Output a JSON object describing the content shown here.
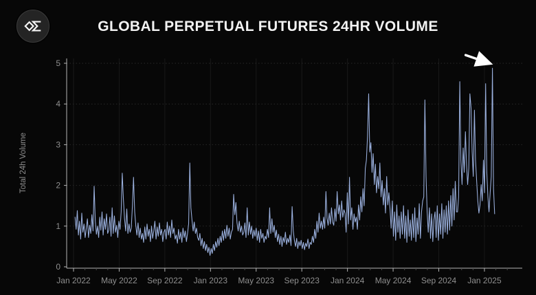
{
  "header": {
    "title": "GLOBAL PERPETUAL FUTURES 24HR VOLUME"
  },
  "colors": {
    "background": "#070707",
    "title": "#f2f2f2",
    "axis_line": "#b5b5b5",
    "tick_label": "#8f8f8f",
    "grid_horizontal": "#282828",
    "grid_vertical": "#191919",
    "line": "#9cb2e0",
    "annotation_arrow": "#ffffff"
  },
  "chart_data": {
    "type": "line",
    "title": "GLOBAL PERPETUAL FUTURES 24HR VOLUME",
    "xlabel": "",
    "ylabel": "Total 24h Volume",
    "ylim": [
      0,
      5
    ],
    "yticks": [
      0,
      1,
      2,
      3,
      4,
      5
    ],
    "xtick_labels": [
      "Jan 2022",
      "May 2022",
      "Sep 2022",
      "Jan 2023",
      "May 2023",
      "Sep 2023",
      "Jan 2024",
      "May 2024",
      "Sep 2024",
      "Jan 2025"
    ],
    "xtick_month_step": 4,
    "x_start": "2022-01-05",
    "x_step_days": 3,
    "x_end": "2025-02-17",
    "grid": true,
    "legend": false,
    "annotation": {
      "type": "arrow",
      "color": "#ffffff",
      "points_to": "final volume spike (~4.9) in early Feb 2025"
    },
    "series": [
      {
        "name": "Total 24h Volume",
        "color": "#9cb2e0",
        "values": [
          1.22,
          0.92,
          1.38,
          0.78,
          1.12,
          0.68,
          1.32,
          0.85,
          1.05,
          0.72,
          0.95,
          1.18,
          0.72,
          1.02,
          0.82,
          1.28,
          0.88,
          1.98,
          1.12,
          0.8,
          1.0,
          0.72,
          1.22,
          0.9,
          1.35,
          0.78,
          1.18,
          0.92,
          1.3,
          0.82,
          0.9,
          1.22,
          0.75,
          1.45,
          0.82,
          1.25,
          0.85,
          1.02,
          0.72,
          1.12,
          0.92,
          1.35,
          2.3,
          1.65,
          1.18,
          0.88,
          1.42,
          0.82,
          1.05,
          0.85,
          0.95,
          1.5,
          2.2,
          1.35,
          1.02,
          0.78,
          1.08,
          0.72,
          0.95,
          0.68,
          0.82,
          0.6,
          0.98,
          0.68,
          1.05,
          0.75,
          0.92,
          0.62,
          1.0,
          0.7,
          0.88,
          1.12,
          0.68,
          0.98,
          0.75,
          1.08,
          0.78,
          0.92,
          0.62,
          0.85,
          0.92,
          0.68,
          1.1,
          0.78,
          1.0,
          0.72,
          1.15,
          0.82,
          0.95,
          0.68,
          0.78,
          0.58,
          0.92,
          0.68,
          0.85,
          0.6,
          0.95,
          0.72,
          0.88,
          0.62,
          0.82,
          1.05,
          2.55,
          1.45,
          1.15,
          0.88,
          1.1,
          0.82,
          0.95,
          0.72,
          0.65,
          0.82,
          0.52,
          0.7,
          0.45,
          0.62,
          0.4,
          0.55,
          0.35,
          0.48,
          0.28,
          0.45,
          0.33,
          0.55,
          0.4,
          0.62,
          0.48,
          0.7,
          0.52,
          0.75,
          0.6,
          0.88,
          0.65,
          0.92,
          0.7,
          1.02,
          0.75,
          0.95,
          0.68,
          0.85,
          0.92,
          1.78,
          1.28,
          1.58,
          1.08,
          0.88,
          1.12,
          0.85,
          1.0,
          0.78,
          0.85,
          1.08,
          0.72,
          1.45,
          0.78,
          1.1,
          0.8,
          1.0,
          0.7,
          0.9,
          0.75,
          0.95,
          0.65,
          0.88,
          0.6,
          0.92,
          0.7,
          0.82,
          0.6,
          0.75,
          0.68,
          0.92,
          0.72,
          1.45,
          0.82,
          1.18,
          0.85,
          1.02,
          0.72,
          0.9,
          0.62,
          0.8,
          0.55,
          0.75,
          0.5,
          0.72,
          0.6,
          0.85,
          0.55,
          0.7,
          0.6,
          0.78,
          0.52,
          1.48,
          0.88,
          0.65,
          0.5,
          0.7,
          0.45,
          0.62,
          0.52,
          0.65,
          0.45,
          0.6,
          0.42,
          0.58,
          0.5,
          0.68,
          0.45,
          0.6,
          0.55,
          0.75,
          0.6,
          0.92,
          0.7,
          1.12,
          0.85,
          1.32,
          0.95,
          1.12,
          0.92,
          1.22,
          0.95,
          1.85,
          1.2,
          1.02,
          1.32,
          1.05,
          1.45,
          1.1,
          1.02,
          1.42,
          1.12,
          1.85,
          1.3,
          1.52,
          1.15,
          1.62,
          1.22,
          1.4,
          1.32,
          0.85,
          1.82,
          1.05,
          2.2,
          1.15,
          1.45,
          0.92,
          1.3,
          1.1,
          1.22,
          0.92,
          1.52,
          1.15,
          1.72,
          1.35,
          1.92,
          1.5,
          2.42,
          2.62,
          3.2,
          4.25,
          2.82,
          3.05,
          2.32,
          2.78,
          2.02,
          2.52,
          1.82,
          2.22,
          1.92,
          2.55,
          1.72,
          2.12,
          1.52,
          1.92,
          1.32,
          2.22,
          1.52,
          1.82,
          1.42,
          0.95,
          1.62,
          0.75,
          1.35,
          0.65,
          1.52,
          0.85,
          1.25,
          0.7,
          1.35,
          0.8,
          1.5,
          0.7,
          1.25,
          0.6,
          1.4,
          0.75,
          1.15,
          0.65,
          1.3,
          0.72,
          1.45,
          0.62,
          1.2,
          0.8,
          1.55,
          0.7,
          1.35,
          1.62,
          1.72,
          4.1,
          2.22,
          1.35,
          0.85,
          1.45,
          0.7,
          1.3,
          0.62,
          1.15,
          1.35,
          0.72,
          1.5,
          0.65,
          1.3,
          0.8,
          1.55,
          0.7,
          1.4,
          0.85,
          1.5,
          0.8,
          1.62,
          0.9,
          1.75,
          1.0,
          1.92,
          1.15,
          2.1,
          1.35,
          1.35,
          1.72,
          4.55,
          2.62,
          2.02,
          2.92,
          2.32,
          3.32,
          2.52,
          2.02,
          2.42,
          4.25,
          3.9,
          2.82,
          2.22,
          3.85,
          2.62,
          2.12,
          1.62,
          1.32,
          1.52,
          2.02,
          1.62,
          2.62,
          1.82,
          4.5,
          2.32,
          1.72,
          1.35,
          1.82,
          2.22,
          4.88,
          1.92,
          1.3
        ]
      }
    ]
  }
}
